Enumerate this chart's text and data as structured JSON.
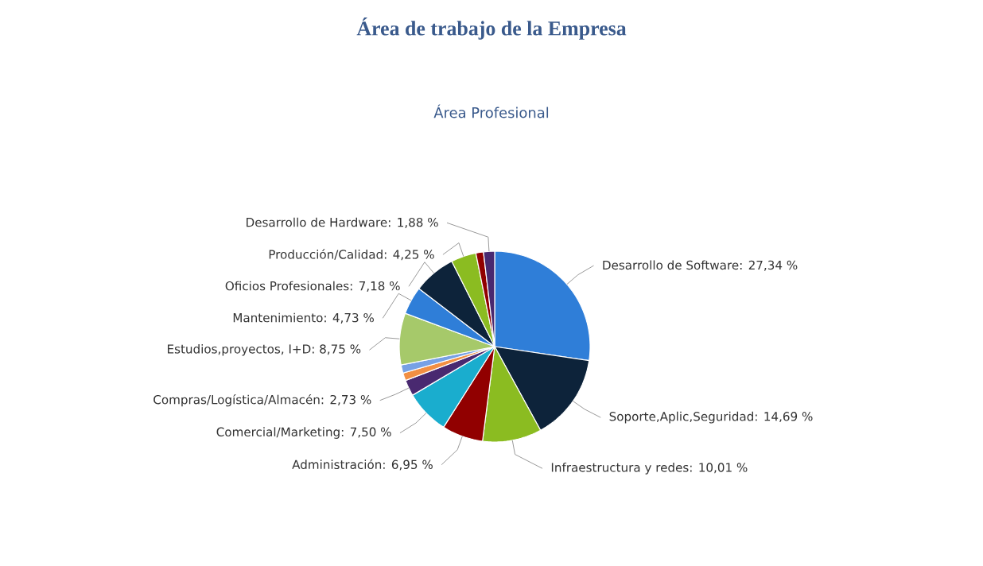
{
  "chart_data": {
    "type": "pie",
    "title": "Área de trabajo de la Empresa",
    "subtitle": "Área Profesional",
    "categories": [
      "Desarrollo de Software: 27,34 %",
      "Soporte,Aplic,Seguridad: 14,69 %",
      "Infraestructura y redes: 10,01 %",
      "Administración: 6,95 %",
      "Comercial/Marketing: 7,50 %",
      "Compras/Logística/Almacén: 2,73 %",
      null,
      null,
      "Estudios,proyectos, I+D: 8,75 %",
      "Mantenimiento: 4,73 %",
      "Oficios Profesionales: 7,18 %",
      "Producción/Calidad: 4,25 %",
      null,
      "Desarrollo de Hardware: 1,88 %"
    ],
    "values": [
      27.34,
      14.69,
      10.01,
      6.95,
      7.5,
      2.73,
      1.3,
      1.4,
      8.75,
      4.73,
      7.18,
      4.25,
      1.29,
      1.88
    ],
    "colors": [
      "#2f7ed8",
      "#0d233a",
      "#8bbc21",
      "#910000",
      "#1aadce",
      "#492970",
      "#f28f43",
      "#77a1e5",
      "#a6c96a",
      "#2f7ed8",
      "#0d233a",
      "#8bbc21",
      "#910000",
      "#492970"
    ]
  }
}
